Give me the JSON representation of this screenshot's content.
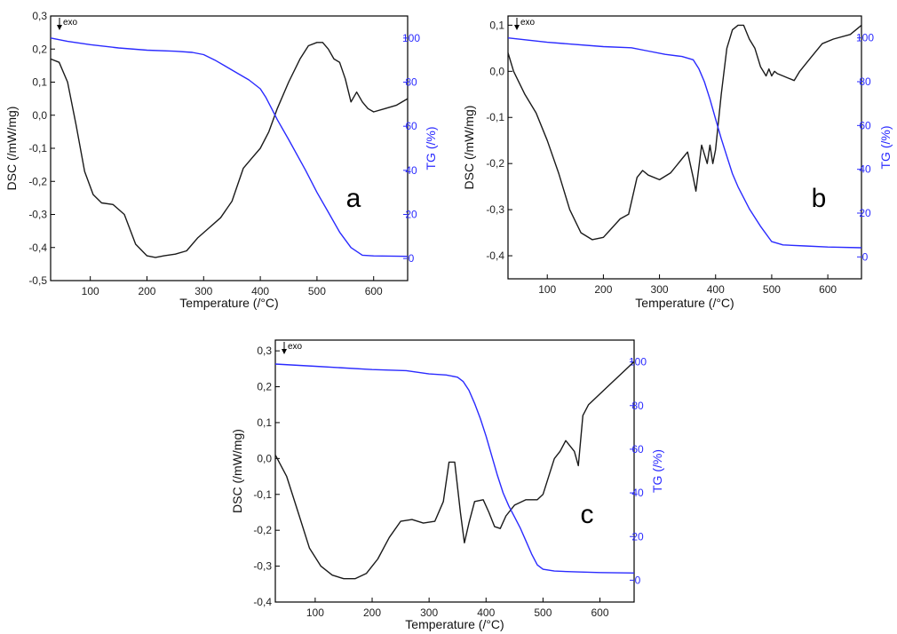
{
  "colors": {
    "dsc": "#1a1a1a",
    "tg": "#2a2aff",
    "frame": "#000000"
  },
  "chart_data": [
    {
      "type": "line",
      "panel_label": "a",
      "exo_label": "exo",
      "xlabel": "Temperature (/°C)",
      "ylabel": "DSC (/mW/mg)",
      "y2label": "TG (/%)",
      "xlim": [
        30,
        660
      ],
      "ylim": [
        -0.5,
        0.3
      ],
      "y2lim": [
        -10,
        110
      ],
      "xticks": [
        100,
        200,
        300,
        400,
        500,
        600
      ],
      "yticks": [
        -0.5,
        -0.4,
        -0.3,
        -0.2,
        -0.1,
        0.0,
        0.1,
        0.2,
        0.3
      ],
      "y2ticks": [
        0,
        20,
        40,
        60,
        80,
        100
      ],
      "grid": false,
      "series": [
        {
          "axis": "left",
          "x": [
            30,
            45,
            60,
            75,
            90,
            105,
            120,
            140,
            160,
            180,
            200,
            215,
            230,
            250,
            270,
            290,
            310,
            330,
            350,
            370,
            385,
            400,
            415,
            430,
            450,
            470,
            485,
            500,
            510,
            520,
            530,
            540,
            550,
            560,
            570,
            580,
            590,
            600,
            620,
            640,
            660
          ],
          "y": [
            0.17,
            0.16,
            0.1,
            -0.03,
            -0.17,
            -0.24,
            -0.265,
            -0.27,
            -0.3,
            -0.39,
            -0.425,
            -0.43,
            -0.425,
            -0.42,
            -0.41,
            -0.37,
            -0.34,
            -0.31,
            -0.26,
            -0.16,
            -0.13,
            -0.1,
            -0.05,
            0.02,
            0.1,
            0.17,
            0.21,
            0.22,
            0.22,
            0.2,
            0.17,
            0.16,
            0.11,
            0.04,
            0.07,
            0.04,
            0.02,
            0.01,
            0.02,
            0.03,
            0.05
          ]
        },
        {
          "axis": "right",
          "x": [
            30,
            60,
            100,
            150,
            200,
            250,
            280,
            300,
            320,
            340,
            360,
            380,
            400,
            410,
            420,
            430,
            450,
            480,
            500,
            520,
            540,
            560,
            580,
            600,
            630,
            660
          ],
          "y": [
            100,
            98.5,
            97,
            95.5,
            94.5,
            94,
            93.5,
            92.5,
            90,
            87,
            84,
            81,
            77,
            73,
            68,
            63,
            54,
            40,
            30,
            21,
            12,
            5,
            1.5,
            1.2,
            1.1,
            1.0
          ]
        }
      ]
    },
    {
      "type": "line",
      "panel_label": "b",
      "exo_label": "exo",
      "xlabel": "Temperature (/°C)",
      "ylabel": "DSC (/mW/mg)",
      "y2label": "TG (/%)",
      "xlim": [
        30,
        660
      ],
      "ylim": [
        -0.45,
        0.12
      ],
      "y2lim": [
        -10,
        110
      ],
      "xticks": [
        100,
        200,
        300,
        400,
        500,
        600
      ],
      "yticks": [
        -0.4,
        -0.3,
        -0.2,
        -0.1,
        0.0,
        0.1
      ],
      "y2ticks": [
        0,
        20,
        40,
        60,
        80,
        100
      ],
      "grid": false,
      "series": [
        {
          "axis": "left",
          "x": [
            30,
            40,
            60,
            80,
            100,
            120,
            140,
            160,
            180,
            200,
            215,
            230,
            245,
            260,
            270,
            280,
            300,
            320,
            340,
            350,
            360,
            365,
            375,
            385,
            390,
            395,
            400,
            410,
            420,
            430,
            440,
            450,
            460,
            470,
            480,
            490,
            495,
            500,
            505,
            510,
            520,
            530,
            540,
            550,
            570,
            590,
            610,
            640,
            660
          ],
          "y": [
            0.04,
            0.0,
            -0.05,
            -0.09,
            -0.15,
            -0.22,
            -0.3,
            -0.35,
            -0.365,
            -0.36,
            -0.34,
            -0.32,
            -0.31,
            -0.23,
            -0.215,
            -0.225,
            -0.235,
            -0.22,
            -0.19,
            -0.175,
            -0.23,
            -0.26,
            -0.16,
            -0.2,
            -0.16,
            -0.2,
            -0.17,
            -0.05,
            0.05,
            0.09,
            0.1,
            0.1,
            0.07,
            0.05,
            0.01,
            -0.01,
            0.005,
            -0.01,
            0.0,
            -0.005,
            -0.01,
            -0.015,
            -0.02,
            0.0,
            0.03,
            0.06,
            0.07,
            0.08,
            0.1
          ]
        },
        {
          "axis": "right",
          "x": [
            30,
            100,
            200,
            250,
            280,
            310,
            340,
            360,
            370,
            380,
            390,
            400,
            410,
            420,
            430,
            440,
            460,
            480,
            500,
            520,
            560,
            600,
            660
          ],
          "y": [
            100,
            98,
            96,
            95.5,
            94,
            92.5,
            91.5,
            90,
            86,
            80,
            72,
            63,
            54,
            46,
            38,
            32,
            22,
            14,
            7,
            5.5,
            5,
            4.5,
            4.2
          ]
        }
      ]
    },
    {
      "type": "line",
      "panel_label": "c",
      "exo_label": "exo",
      "xlabel": "Temperature (/°C)",
      "ylabel": "DSC (/mW/mg)",
      "y2label": "TG (/%)",
      "xlim": [
        30,
        660
      ],
      "ylim": [
        -0.4,
        0.33
      ],
      "y2lim": [
        -10,
        110
      ],
      "xticks": [
        100,
        200,
        300,
        400,
        500,
        600
      ],
      "yticks": [
        -0.4,
        -0.3,
        -0.2,
        -0.1,
        0.0,
        0.1,
        0.2,
        0.3
      ],
      "y2ticks": [
        0,
        20,
        40,
        60,
        80,
        100
      ],
      "grid": false,
      "series": [
        {
          "axis": "left",
          "x": [
            30,
            50,
            70,
            90,
            110,
            130,
            150,
            170,
            190,
            210,
            230,
            250,
            270,
            290,
            310,
            325,
            335,
            345,
            355,
            362,
            370,
            380,
            395,
            405,
            415,
            425,
            435,
            450,
            470,
            490,
            500,
            510,
            520,
            530,
            540,
            555,
            562,
            570,
            580,
            600,
            620,
            640,
            660
          ],
          "y": [
            0.01,
            -0.05,
            -0.15,
            -0.25,
            -0.3,
            -0.325,
            -0.335,
            -0.335,
            -0.32,
            -0.28,
            -0.22,
            -0.175,
            -0.17,
            -0.18,
            -0.175,
            -0.12,
            -0.01,
            -0.01,
            -0.15,
            -0.235,
            -0.18,
            -0.12,
            -0.115,
            -0.15,
            -0.19,
            -0.195,
            -0.16,
            -0.13,
            -0.115,
            -0.115,
            -0.1,
            -0.05,
            0.0,
            0.02,
            0.05,
            0.02,
            -0.02,
            0.12,
            0.15,
            0.18,
            0.21,
            0.24,
            0.27
          ]
        },
        {
          "axis": "right",
          "x": [
            30,
            100,
            200,
            260,
            300,
            330,
            350,
            360,
            370,
            380,
            390,
            400,
            410,
            420,
            430,
            440,
            450,
            460,
            470,
            480,
            490,
            500,
            520,
            560,
            600,
            660
          ],
          "y": [
            99,
            98,
            96.5,
            96,
            94.5,
            94,
            93,
            91,
            87,
            81,
            74,
            66,
            57,
            48,
            40,
            34,
            29,
            24,
            18,
            12,
            7,
            5,
            4.2,
            3.8,
            3.5,
            3.3
          ]
        }
      ]
    }
  ]
}
